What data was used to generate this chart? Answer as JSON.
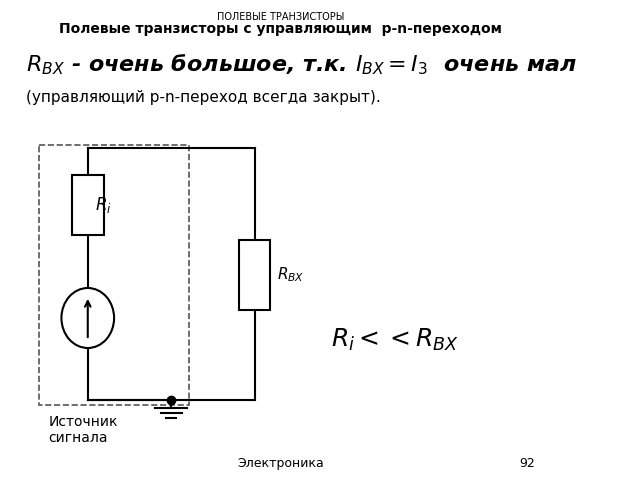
{
  "title_small": "ПОЛЕВЫЕ ТРАНЗИСТОРЫ",
  "title_large": "Полевые транзисторы с управляющим  p-n-переходом",
  "formula_text": "$R_{BX}$ - очень большое, т.к. $I_{BX}=I_3$  очень мал",
  "subtitle": "(управляющий p-n-переход всегда закрыт).",
  "label_Ri": "$R_i$",
  "label_RBX": "$R_{BX}$",
  "label_source": "Источник\nсигнала",
  "formula2": "$R_i << R_{BX}$",
  "footer": "Электроника",
  "page": "92",
  "bg_color": "#ffffff",
  "text_color": "#000000",
  "line_color": "#000000",
  "dashed_color": "#555555"
}
